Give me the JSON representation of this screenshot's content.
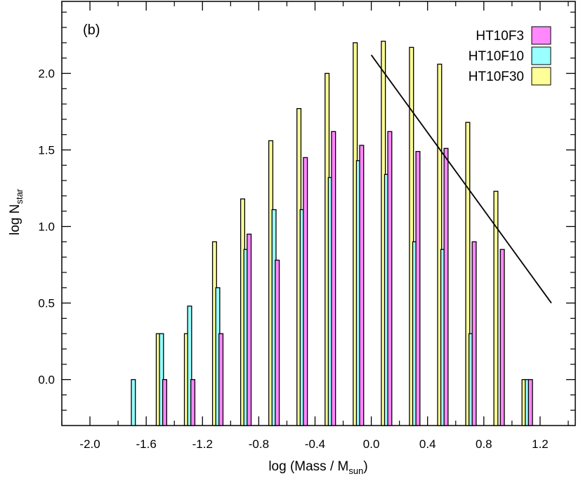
{
  "chart_data": {
    "type": "bar",
    "panel_label": "(b)",
    "xlabel": "log (Mass / M",
    "xlabel_sub": "sun",
    "xlabel_close": ")",
    "ylabel": "log N",
    "ylabel_sub": "star",
    "xlim": [
      -2.2,
      1.45
    ],
    "ylim": [
      -0.3,
      2.47
    ],
    "xticks": [
      -2.0,
      -1.6,
      -1.2,
      -0.8,
      -0.4,
      0.0,
      0.4,
      0.8,
      1.2
    ],
    "xtick_labels": [
      "-2.0",
      "-1.6",
      "-1.2",
      "-0.8",
      "-0.4",
      "0.0",
      "0.4",
      "0.8",
      "1.2"
    ],
    "yticks": [
      0.0,
      0.5,
      1.0,
      1.5,
      2.0
    ],
    "ytick_labels": [
      "0.0",
      "0.5",
      "1.0",
      "1.5",
      "2.0"
    ],
    "bin_width": 0.2,
    "legend_position": "top-right",
    "series": [
      {
        "name": "HT10F30",
        "color": "#ffff99",
        "x": [
          -1.5,
          -1.3,
          -1.1,
          -0.9,
          -0.7,
          -0.5,
          -0.3,
          -0.1,
          0.1,
          0.3,
          0.5,
          0.7,
          0.9,
          1.1
        ],
        "values": [
          0.3,
          0.3,
          0.9,
          1.18,
          1.56,
          1.77,
          2.0,
          2.2,
          2.21,
          2.17,
          2.06,
          1.68,
          1.23,
          0.0
        ]
      },
      {
        "name": "HT10F10",
        "color": "#99ffff",
        "x": [
          -1.7,
          -1.5,
          -1.3,
          -1.1,
          -0.9,
          -0.7,
          -0.5,
          -0.3,
          -0.1,
          0.1,
          0.3,
          0.5,
          0.7,
          1.1
        ],
        "values": [
          0.0,
          0.3,
          0.48,
          0.6,
          0.85,
          1.11,
          1.11,
          1.32,
          1.43,
          1.34,
          0.9,
          0.85,
          0.3,
          0.0
        ]
      },
      {
        "name": "HT10F3",
        "color": "#ff88ff",
        "x": [
          -1.5,
          -1.3,
          -1.1,
          -0.9,
          -0.7,
          -0.5,
          -0.3,
          -0.1,
          0.1,
          0.3,
          0.5,
          0.7,
          0.9,
          1.1
        ],
        "values": [
          0.0,
          0.0,
          0.3,
          0.95,
          0.78,
          1.45,
          1.62,
          1.53,
          1.62,
          1.49,
          1.51,
          0.9,
          0.85,
          0.0
        ]
      }
    ],
    "legend_order": [
      "HT10F3",
      "HT10F10",
      "HT10F30"
    ],
    "reference_line": {
      "x": [
        0.0,
        1.28
      ],
      "y": [
        2.12,
        0.5
      ]
    }
  }
}
